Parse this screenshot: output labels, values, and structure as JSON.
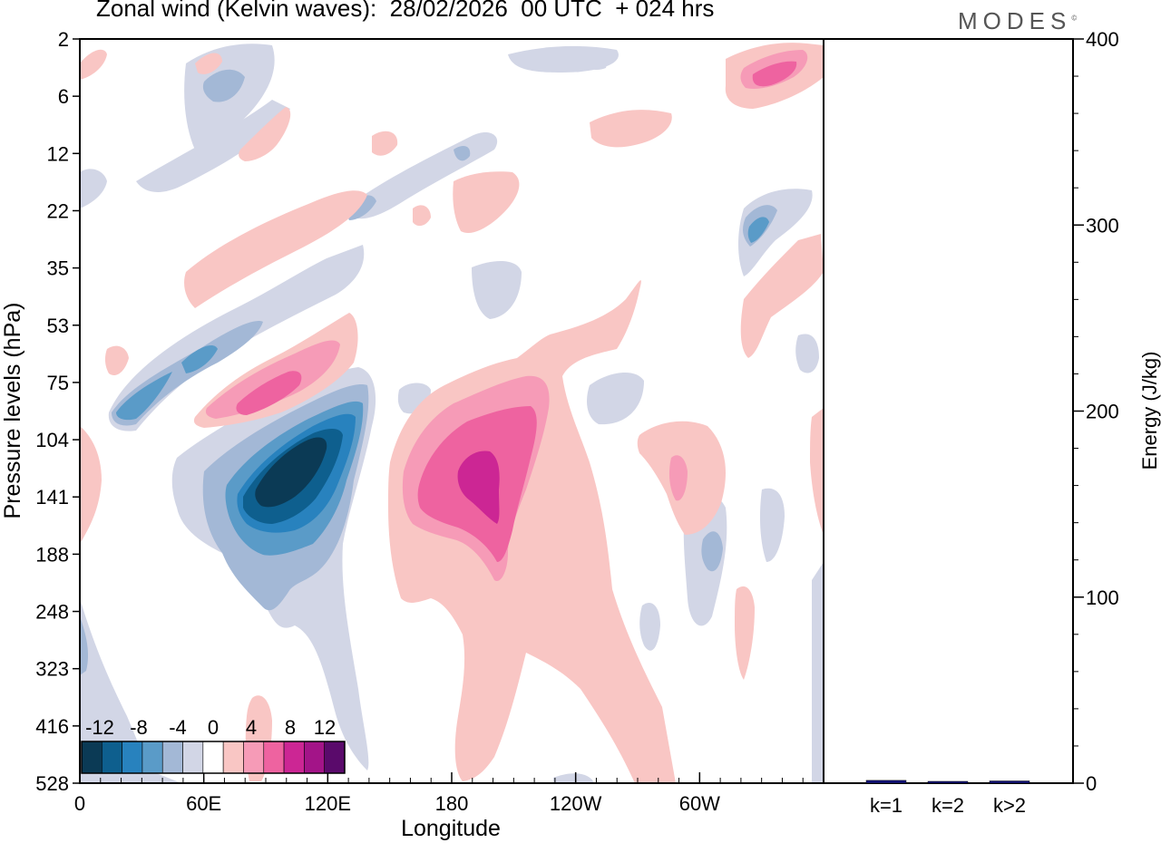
{
  "title": "Zonal wind (Kelvin waves):  28/02/2026  00 UTC  + 024 hrs",
  "logo": "MODES",
  "logo_mark": "©",
  "chart_data": [
    {
      "type": "heatmap",
      "title": "Zonal wind (Kelvin waves):  28/02/2026  00 UTC  + 024 hrs",
      "xlabel": "Longitude",
      "ylabel": "Pressure levels (hPa)",
      "x_tick_labels": [
        "0",
        "60E",
        "120E",
        "180",
        "120W",
        "60W"
      ],
      "x_tick_values_deg": [
        0,
        60,
        120,
        180,
        240,
        300
      ],
      "xlim": [
        0,
        360
      ],
      "y_tick_labels": [
        "2",
        "6",
        "12",
        "22",
        "35",
        "53",
        "75",
        "104",
        "141",
        "188",
        "248",
        "323",
        "416",
        "528"
      ],
      "y_axis": "pressure, top to bottom",
      "colorbar": {
        "labels": [
          "-12",
          "-8",
          "-4",
          "0",
          "4",
          "8",
          "12"
        ],
        "levels": [
          -14,
          -12,
          -10,
          -8,
          -6,
          -4,
          -2,
          2,
          4,
          6,
          8,
          10,
          12,
          14
        ],
        "colors": [
          "#0b3a55",
          "#0e5f8e",
          "#2882be",
          "#5a9bc8",
          "#a3b8d6",
          "#d2d6e6",
          "#ffffff",
          "#f9c6c4",
          "#f69bb7",
          "#ee63a0",
          "#cc2694",
          "#a31488",
          "#5a0a6b"
        ]
      },
      "wind_features": [
        {
          "name": "strong easterly core",
          "lon": 100,
          "level": "120",
          "value": -14
        },
        {
          "name": "strong westerly core",
          "lon": 190,
          "level": "130",
          "value": 12
        },
        {
          "name": "westerly anomaly",
          "lon": 95,
          "level": "80",
          "value": 9
        },
        {
          "name": "easterly band",
          "lon": 35,
          "level": "85",
          "value": -7
        },
        {
          "name": "westerly anomaly",
          "lon": 340,
          "level": "5",
          "value": 7
        },
        {
          "name": "easterly anomaly",
          "lon": 330,
          "level": "25",
          "value": -7
        }
      ]
    },
    {
      "type": "bar",
      "ylabel": "Energy (J/kg)",
      "ylim": [
        0,
        400
      ],
      "y_tick_labels": [
        "0",
        "100",
        "200",
        "300",
        "400"
      ],
      "categories": [
        "k=1",
        "k=2",
        "k>2"
      ],
      "values": [
        1.5,
        0.8,
        1.2
      ],
      "bar_color": "#12127a"
    }
  ]
}
